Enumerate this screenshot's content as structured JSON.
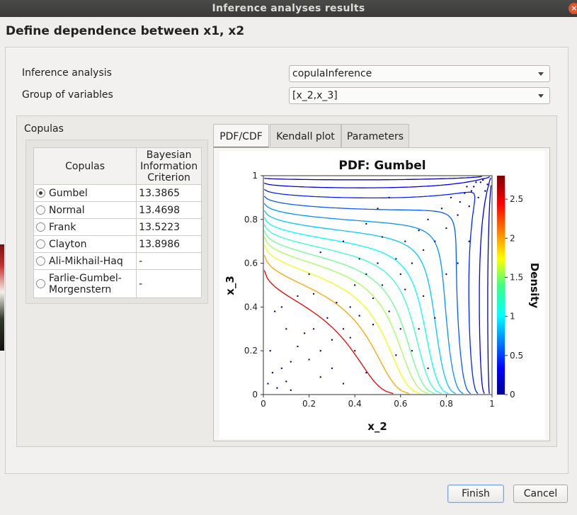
{
  "window": {
    "title": "Inference analyses results",
    "close_glyph": "×"
  },
  "page_title": "Define dependence between x1, x2",
  "form": {
    "inference_label": "Inference analysis",
    "inference_value": "copulaInference",
    "group_label": "Group of variables",
    "group_value": "[x_2,x_3]"
  },
  "copulas": {
    "group_title": "Copulas",
    "columns": [
      "Copulas",
      "Bayesian Information Criterion"
    ],
    "rows": [
      {
        "name": "Gumbel",
        "bic": "13.3865",
        "selected": true
      },
      {
        "name": "Normal",
        "bic": "13.4698",
        "selected": false
      },
      {
        "name": "Frank",
        "bic": "13.5223",
        "selected": false
      },
      {
        "name": "Clayton",
        "bic": "13.8986",
        "selected": false
      },
      {
        "name": "Ali-Mikhail-Haq",
        "bic": "-",
        "selected": false
      },
      {
        "name": "Farlie-Gumbel-Morgenstern",
        "bic": "-",
        "selected": false
      }
    ]
  },
  "tabs": [
    {
      "label": "PDF/CDF",
      "active": true
    },
    {
      "label": "Kendall plot",
      "active": false
    },
    {
      "label": "Parameters",
      "active": false
    }
  ],
  "chart_data": {
    "type": "contour",
    "title": "PDF: Gumbel",
    "xlabel": "x_2",
    "ylabel": "x_3",
    "colorbar_label": "Density",
    "xlim": [
      0,
      1
    ],
    "ylim": [
      0,
      1
    ],
    "x_ticks": [
      "0",
      "0.2",
      "0.4",
      "0.6",
      "0.8",
      "1"
    ],
    "y_ticks": [
      "0",
      "0.2",
      "0.4",
      "0.6",
      "0.8",
      "1"
    ],
    "colorbar_range": [
      0,
      2.8
    ],
    "colorbar_ticks": [
      "0",
      "0.5",
      "1",
      "1.5",
      "2",
      "2.5"
    ],
    "contour_levels": [
      0.03,
      0.15,
      0.3,
      0.45,
      0.6,
      0.75,
      0.9,
      1.05,
      1.2,
      1.35,
      1.5,
      1.7,
      2.0,
      2.5
    ],
    "points": [
      [
        0.02,
        0.05
      ],
      [
        0.04,
        0.1
      ],
      [
        0.06,
        0.03
      ],
      [
        0.08,
        0.12
      ],
      [
        0.1,
        0.06
      ],
      [
        0.03,
        0.2
      ],
      [
        0.12,
        0.15
      ],
      [
        0.15,
        0.22
      ],
      [
        0.18,
        0.28
      ],
      [
        0.2,
        0.16
      ],
      [
        0.22,
        0.3
      ],
      [
        0.25,
        0.2
      ],
      [
        0.28,
        0.35
      ],
      [
        0.3,
        0.25
      ],
      [
        0.32,
        0.42
      ],
      [
        0.35,
        0.3
      ],
      [
        0.38,
        0.4
      ],
      [
        0.4,
        0.5
      ],
      [
        0.42,
        0.36
      ],
      [
        0.45,
        0.55
      ],
      [
        0.48,
        0.44
      ],
      [
        0.5,
        0.6
      ],
      [
        0.52,
        0.5
      ],
      [
        0.55,
        0.38
      ],
      [
        0.58,
        0.62
      ],
      [
        0.6,
        0.55
      ],
      [
        0.62,
        0.7
      ],
      [
        0.65,
        0.6
      ],
      [
        0.68,
        0.75
      ],
      [
        0.7,
        0.66
      ],
      [
        0.72,
        0.8
      ],
      [
        0.75,
        0.7
      ],
      [
        0.78,
        0.85
      ],
      [
        0.8,
        0.76
      ],
      [
        0.82,
        0.9
      ],
      [
        0.85,
        0.82
      ],
      [
        0.88,
        0.92
      ],
      [
        0.9,
        0.86
      ],
      [
        0.92,
        0.95
      ],
      [
        0.94,
        0.9
      ],
      [
        0.95,
        0.97
      ],
      [
        0.97,
        0.93
      ],
      [
        0.96,
        0.98
      ],
      [
        0.98,
        0.96
      ],
      [
        0.93,
        0.97
      ],
      [
        0.91,
        0.93
      ],
      [
        0.89,
        0.95
      ],
      [
        0.86,
        0.88
      ],
      [
        0.15,
        0.45
      ],
      [
        0.2,
        0.55
      ],
      [
        0.25,
        0.65
      ],
      [
        0.3,
        0.12
      ],
      [
        0.35,
        0.05
      ],
      [
        0.4,
        0.2
      ],
      [
        0.45,
        0.1
      ],
      [
        0.6,
        0.3
      ],
      [
        0.65,
        0.2
      ],
      [
        0.7,
        0.45
      ],
      [
        0.75,
        0.35
      ],
      [
        0.8,
        0.55
      ],
      [
        0.5,
        0.85
      ],
      [
        0.45,
        0.78
      ],
      [
        0.55,
        0.9
      ],
      [
        0.35,
        0.7
      ],
      [
        0.1,
        0.3
      ],
      [
        0.05,
        0.38
      ],
      [
        0.08,
        0.4
      ],
      [
        0.12,
        0.02
      ],
      [
        0.25,
        0.08
      ],
      [
        0.22,
        0.46
      ],
      [
        0.58,
        0.18
      ],
      [
        0.68,
        0.3
      ],
      [
        0.72,
        0.12
      ],
      [
        0.85,
        0.6
      ],
      [
        0.9,
        0.7
      ],
      [
        0.42,
        0.62
      ],
      [
        0.38,
        0.26
      ],
      [
        0.48,
        0.32
      ],
      [
        0.52,
        0.72
      ],
      [
        0.62,
        0.48
      ]
    ]
  },
  "buttons": {
    "finish": "Finish",
    "cancel": "Cancel"
  }
}
